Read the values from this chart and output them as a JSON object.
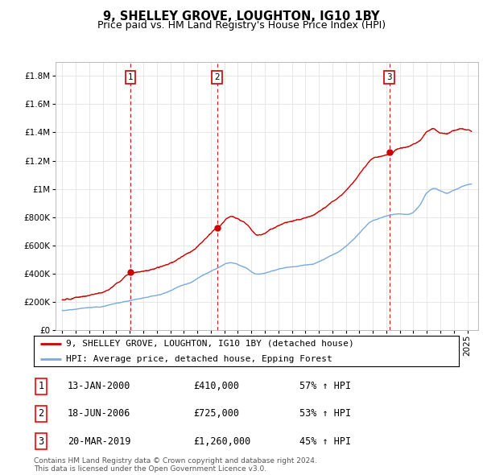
{
  "title": "9, SHELLEY GROVE, LOUGHTON, IG10 1BY",
  "subtitle": "Price paid vs. HM Land Registry's House Price Index (HPI)",
  "ytick_values": [
    0,
    200000,
    400000,
    600000,
    800000,
    1000000,
    1200000,
    1400000,
    1600000,
    1800000
  ],
  "ylim": [
    0,
    1900000
  ],
  "xlim_start": 1994.5,
  "xlim_end": 2025.8,
  "sale_dates": [
    2000.04,
    2006.46,
    2019.22
  ],
  "sale_prices": [
    410000,
    725000,
    1260000
  ],
  "sale_labels": [
    "1",
    "2",
    "3"
  ],
  "red_line_color": "#cc0000",
  "blue_line_color": "#7aaadd",
  "grid_color": "#dddddd",
  "vline_color": "#cc0000",
  "legend_entries": [
    "9, SHELLEY GROVE, LOUGHTON, IG10 1BY (detached house)",
    "HPI: Average price, detached house, Epping Forest"
  ],
  "table_entries": [
    {
      "label": "1",
      "date": "13-JAN-2000",
      "price": "£410,000",
      "hpi": "57% ↑ HPI"
    },
    {
      "label": "2",
      "date": "18-JUN-2006",
      "price": "£725,000",
      "hpi": "53% ↑ HPI"
    },
    {
      "label": "3",
      "date": "20-MAR-2019",
      "price": "£1,260,000",
      "hpi": "45% ↑ HPI"
    }
  ],
  "footnote": "Contains HM Land Registry data © Crown copyright and database right 2024.\nThis data is licensed under the Open Government Licence v3.0.",
  "title_fontsize": 10.5,
  "subtitle_fontsize": 9,
  "tick_fontsize": 7.5,
  "legend_fontsize": 8,
  "table_fontsize": 8.5
}
